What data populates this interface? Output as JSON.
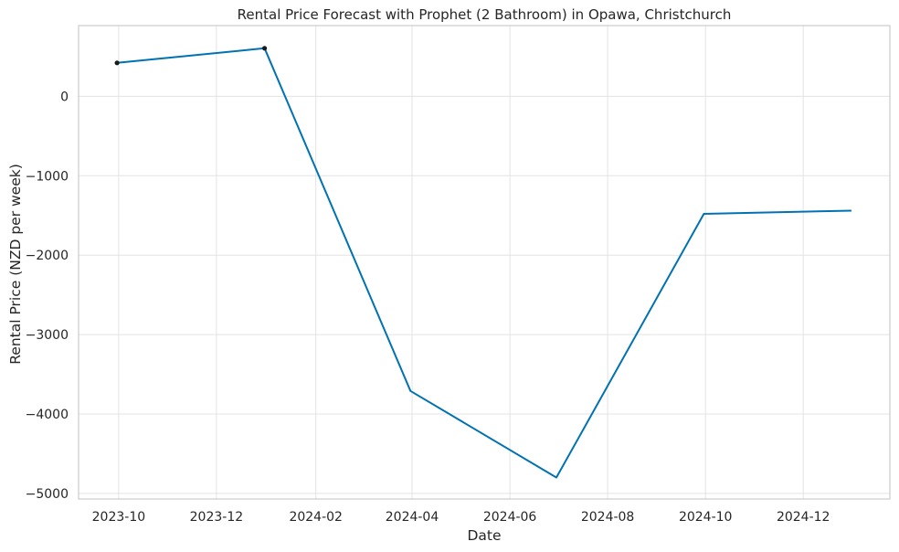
{
  "chart_data": {
    "type": "line",
    "title": "Rental Price Forecast with Prophet (2 Bathroom) in Opawa, Christchurch",
    "xlabel": "Date",
    "ylabel": "Rental Price (NZD per week)",
    "x_ticks": [
      "2023-10",
      "2023-12",
      "2024-02",
      "2024-04",
      "2024-06",
      "2024-08",
      "2024-10",
      "2024-12"
    ],
    "y_ticks": [
      0,
      -1000,
      -2000,
      -3000,
      -4000,
      -5000
    ],
    "xlim": [
      "2023-09-06",
      "2025-01-24"
    ],
    "ylim": [
      -5070,
      890
    ],
    "grid": true,
    "series": [
      {
        "color": "#0072b2",
        "points": [
          {
            "x": "2023-09-30",
            "y": 420
          },
          {
            "x": "2023-12-31",
            "y": 605
          },
          {
            "x": "2024-03-31",
            "y": -3710
          },
          {
            "x": "2024-06-30",
            "y": -4800
          },
          {
            "x": "2024-09-30",
            "y": -1480
          },
          {
            "x": "2024-12-31",
            "y": -1440
          }
        ]
      }
    ],
    "observed_points": [
      {
        "x": "2023-09-30",
        "y": 420
      },
      {
        "x": "2023-12-31",
        "y": 605
      }
    ],
    "observed_color": "#1a1a1a"
  }
}
